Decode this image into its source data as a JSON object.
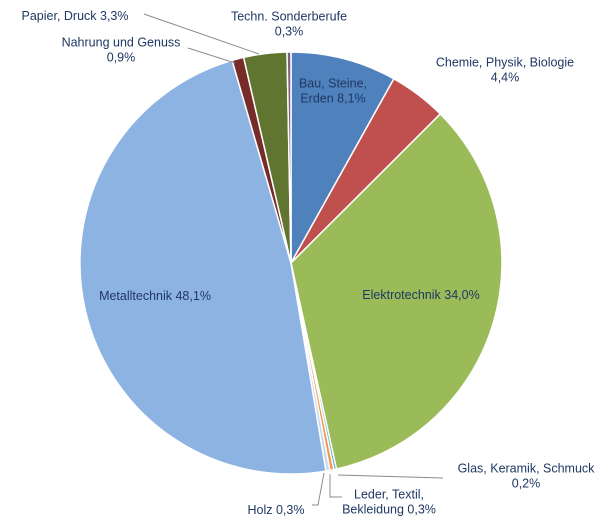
{
  "chart_data": {
    "type": "pie",
    "title": "",
    "start_angle_deg": 0,
    "direction": "clockwise",
    "slices": [
      {
        "name": "Bau, Steine, Erden",
        "value": 8.1,
        "label": [
          "Bau, Steine,",
          "Erden 8,1%"
        ],
        "color": "#4f81bd"
      },
      {
        "name": "Chemie, Physik, Biologie",
        "value": 4.4,
        "label": [
          "Chemie, Physik, Biologie",
          "4,4%"
        ],
        "color": "#c0504d"
      },
      {
        "name": "Elektrotechnik",
        "value": 34.0,
        "label": [
          "Elektrotechnik 34,0%"
        ],
        "color": "#9bbb59"
      },
      {
        "name": "Glas, Keramik, Schmuck",
        "value": 0.2,
        "label": [
          "Glas, Keramik, Schmuck",
          "0,2%"
        ],
        "color": "#4bacc6"
      },
      {
        "name": "Leder, Textil, Bekleidung",
        "value": 0.3,
        "label": [
          "Leder, Textil,",
          "Bekleidung 0,3%"
        ],
        "color": "#f79646"
      },
      {
        "name": "Holz",
        "value": 0.3,
        "label": [
          "Holz 0,3%"
        ],
        "color": "#c6d9f1"
      },
      {
        "name": "Metalltechnik",
        "value": 48.1,
        "label": [
          "Metalltechnik 48,1%"
        ],
        "color": "#8db3e2"
      },
      {
        "name": "Nahrung und Genuss",
        "value": 0.9,
        "label": [
          "Nahrung und Genuss",
          "0,9%"
        ],
        "color": "#772c2a"
      },
      {
        "name": "Papier, Druck",
        "value": 3.3,
        "label": [
          "Papier, Druck 3,3%"
        ],
        "color": "#5f7530"
      },
      {
        "name": "Techn. Sonderberufe",
        "value": 0.3,
        "label": [
          "Techn. Sonderberufe",
          "0,3%"
        ],
        "color": "#7f6084"
      }
    ]
  }
}
